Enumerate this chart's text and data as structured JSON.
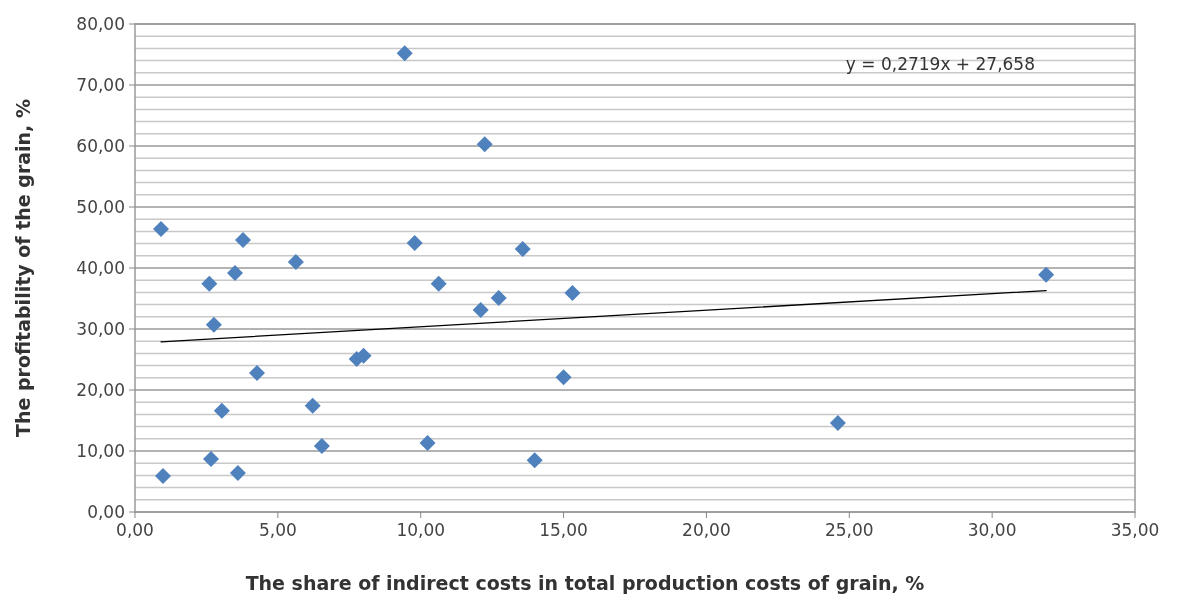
{
  "chart_data": {
    "type": "scatter",
    "xlabel": "The share of indirect costs in total production costs of grain, %",
    "ylabel": "The profitability of the grain, %",
    "xlim": [
      0,
      35
    ],
    "ylim": [
      0,
      80
    ],
    "xticks": [
      {
        "value": 0,
        "label": "0,00"
      },
      {
        "value": 5,
        "label": "5,00"
      },
      {
        "value": 10,
        "label": "10,00"
      },
      {
        "value": 15,
        "label": "15,00"
      },
      {
        "value": 20,
        "label": "20,00"
      },
      {
        "value": 25,
        "label": "25,00"
      },
      {
        "value": 30,
        "label": "30,00"
      },
      {
        "value": 35,
        "label": "35,00"
      }
    ],
    "yticks": [
      {
        "value": 0,
        "label": "0,00"
      },
      {
        "value": 2,
        "label": null
      },
      {
        "value": 4,
        "label": null
      },
      {
        "value": 6,
        "label": null
      },
      {
        "value": 8,
        "label": null
      },
      {
        "value": 10,
        "label": "10,00"
      },
      {
        "value": 12,
        "label": null
      },
      {
        "value": 14,
        "label": null
      },
      {
        "value": 16,
        "label": null
      },
      {
        "value": 18,
        "label": null
      },
      {
        "value": 20,
        "label": "20,00"
      },
      {
        "value": 22,
        "label": null
      },
      {
        "value": 24,
        "label": null
      },
      {
        "value": 26,
        "label": null
      },
      {
        "value": 28,
        "label": null
      },
      {
        "value": 30,
        "label": "30,00"
      },
      {
        "value": 32,
        "label": null
      },
      {
        "value": 34,
        "label": null
      },
      {
        "value": 36,
        "label": null
      },
      {
        "value": 38,
        "label": null
      },
      {
        "value": 40,
        "label": "40,00"
      },
      {
        "value": 42,
        "label": null
      },
      {
        "value": 44,
        "label": null
      },
      {
        "value": 46,
        "label": null
      },
      {
        "value": 48,
        "label": null
      },
      {
        "value": 50,
        "label": "50,00"
      },
      {
        "value": 52,
        "label": null
      },
      {
        "value": 54,
        "label": null
      },
      {
        "value": 56,
        "label": null
      },
      {
        "value": 58,
        "label": null
      },
      {
        "value": 60,
        "label": "60,00"
      },
      {
        "value": 62,
        "label": null
      },
      {
        "value": 64,
        "label": null
      },
      {
        "value": 66,
        "label": null
      },
      {
        "value": 68,
        "label": null
      },
      {
        "value": 70,
        "label": "70,00"
      },
      {
        "value": 72,
        "label": null
      },
      {
        "value": 74,
        "label": null
      },
      {
        "value": 76,
        "label": null
      },
      {
        "value": 78,
        "label": null
      },
      {
        "value": 80,
        "label": "80,00"
      }
    ],
    "grid": "y",
    "annotations": [
      "y = 0,2719x + 27,658"
    ],
    "series": [
      {
        "marker": "diamond",
        "color": "#4f81bd",
        "x": [
          0.98,
          0.91,
          2.6,
          2.66,
          2.76,
          3.04,
          3.5,
          3.6,
          3.78,
          4.27,
          5.63,
          6.22,
          6.54,
          7.76,
          8.0,
          9.44,
          9.79,
          10.24,
          10.63,
          12.1,
          12.24,
          12.73,
          13.57,
          13.99,
          15.0,
          15.31,
          24.6,
          31.89
        ],
        "values": [
          5.9,
          46.4,
          37.4,
          8.7,
          30.7,
          16.6,
          39.2,
          6.4,
          44.6,
          22.8,
          41.0,
          17.4,
          10.8,
          25.1,
          25.6,
          75.2,
          44.1,
          11.3,
          37.4,
          33.1,
          60.3,
          35.1,
          43.1,
          8.5,
          22.1,
          35.9,
          14.6,
          38.9
        ]
      },
      {
        "type": "line",
        "marker": "none",
        "color": "#000000",
        "x": [
          0.91,
          31.89
        ],
        "values": [
          27.9,
          36.3
        ]
      }
    ]
  }
}
